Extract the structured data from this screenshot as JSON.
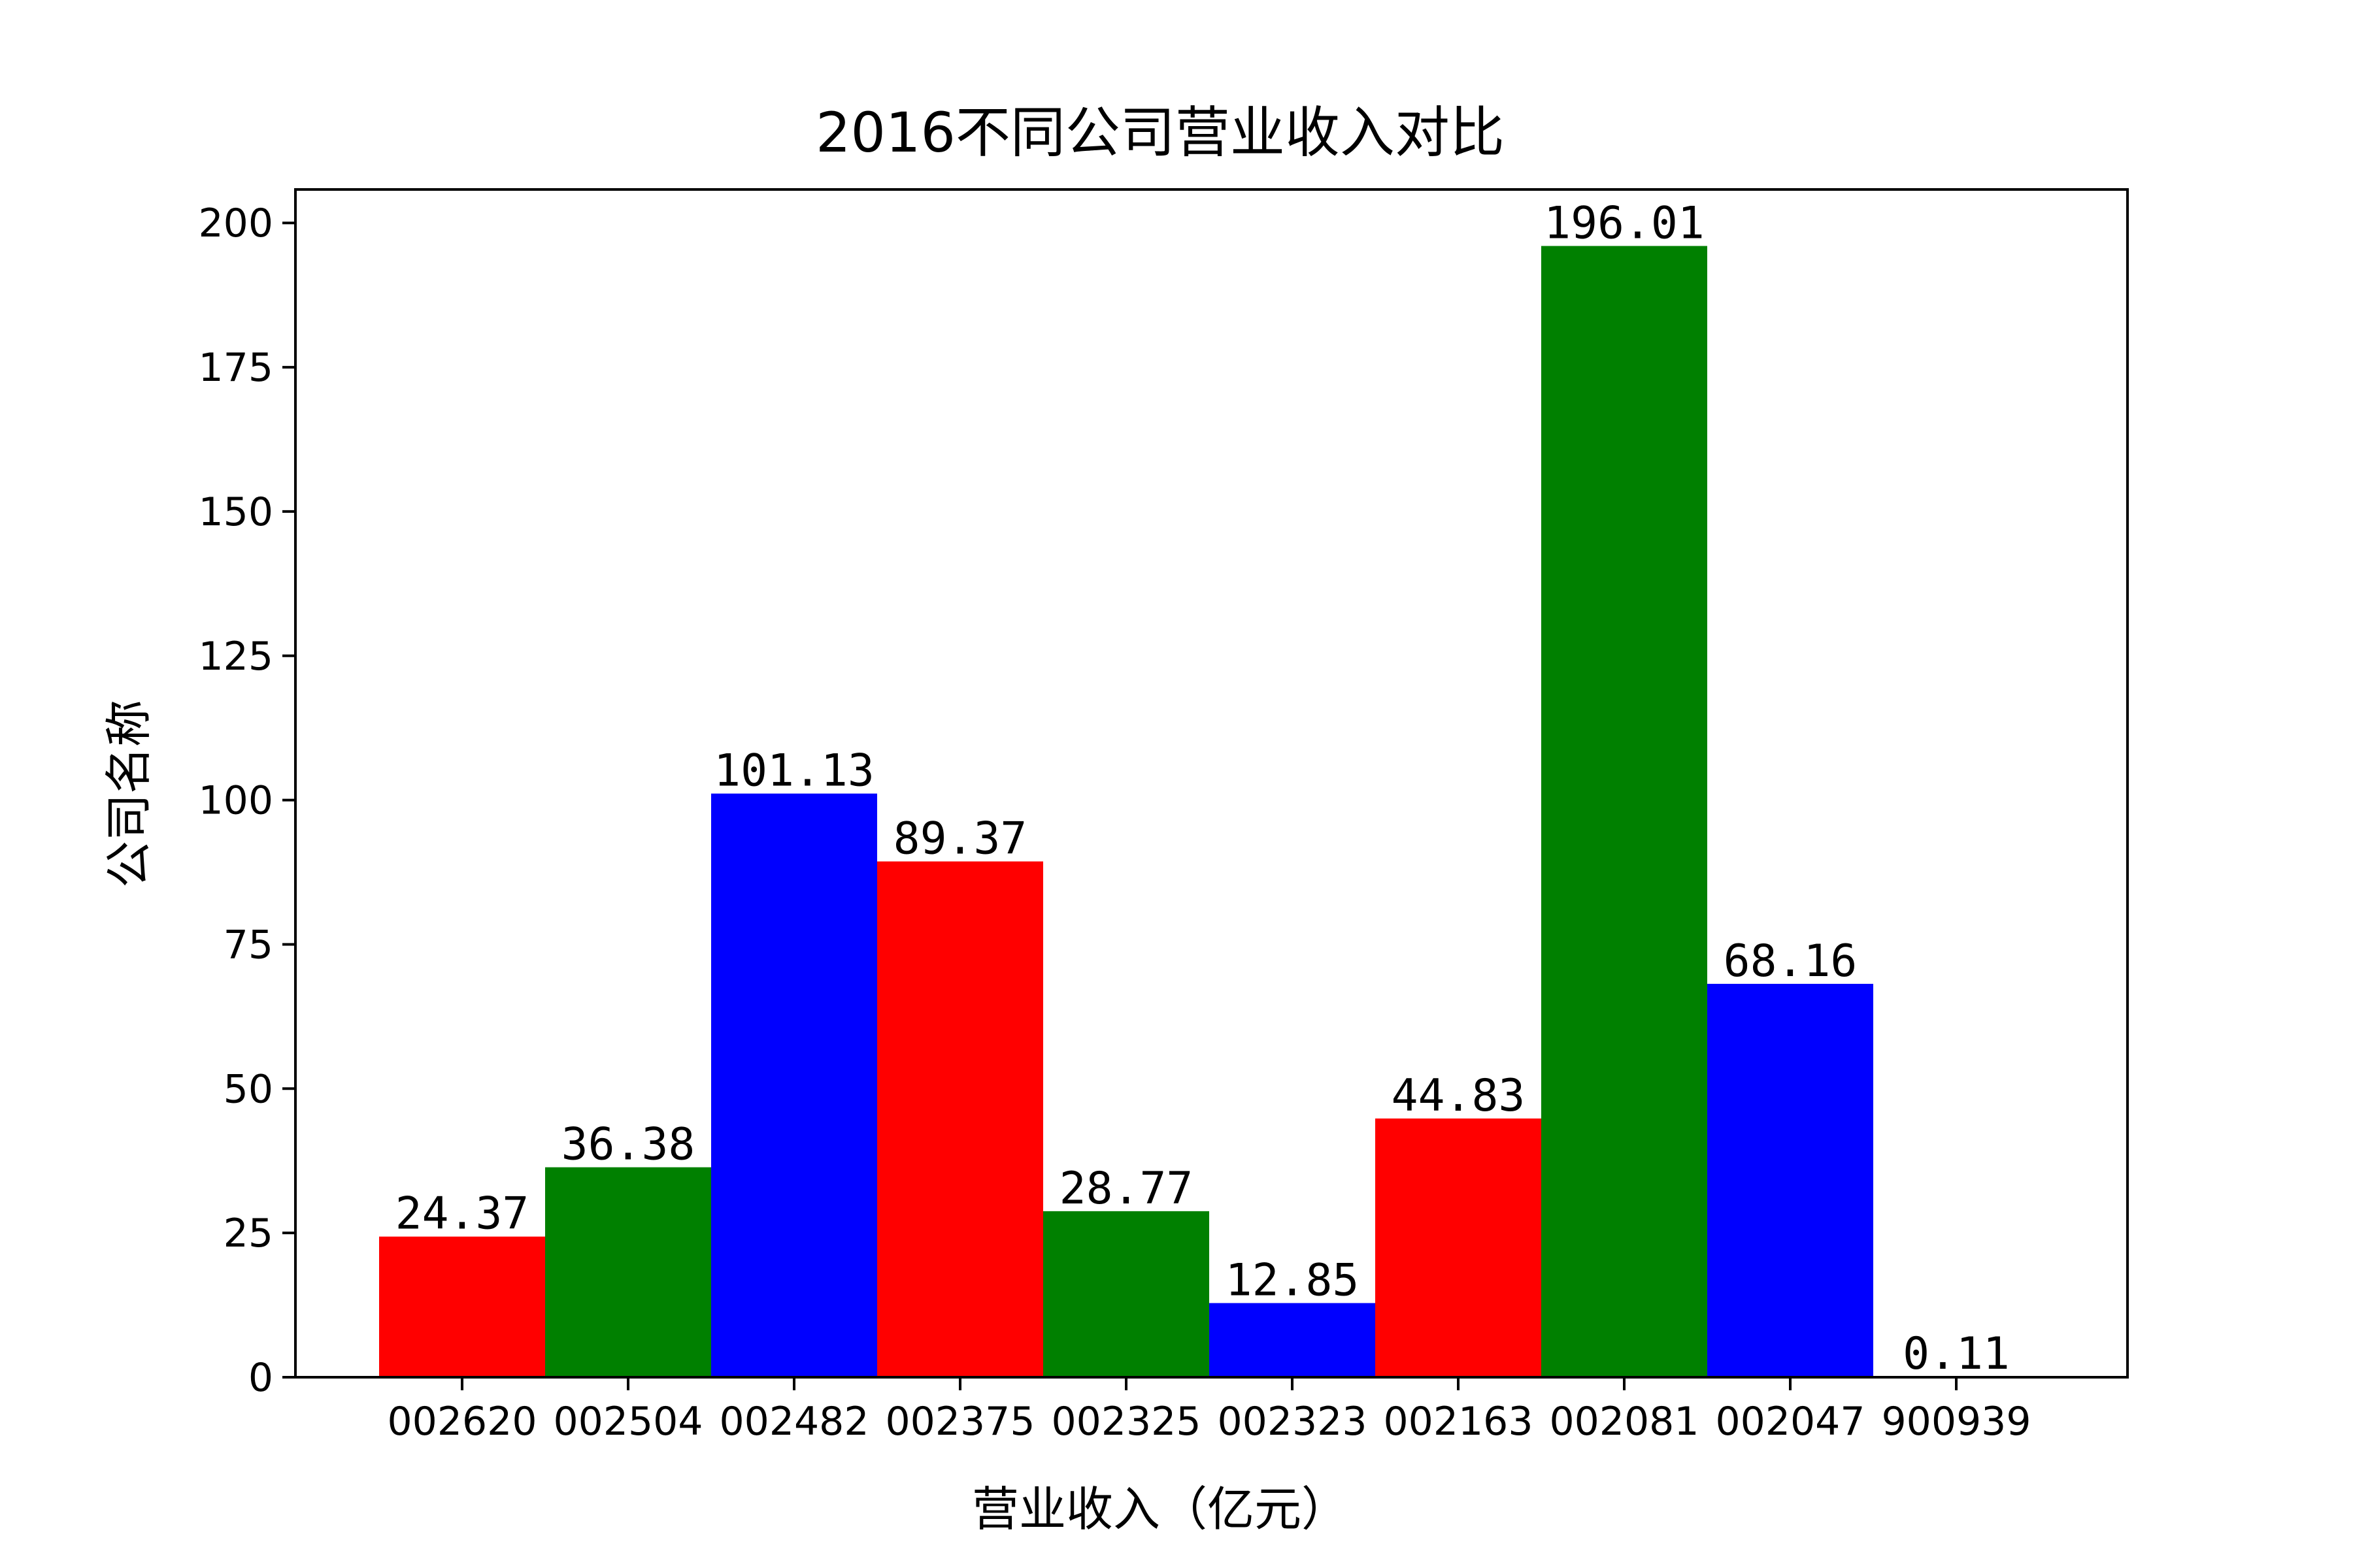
{
  "chart_data": {
    "type": "bar",
    "title": "2016不同公司营业收入对比",
    "xlabel": "营业收入（亿元）",
    "ylabel": "公司名称",
    "categories": [
      "002620",
      "002504",
      "002482",
      "002375",
      "002325",
      "002323",
      "002163",
      "002081",
      "002047",
      "900939"
    ],
    "values": [
      24.37,
      36.38,
      101.13,
      89.37,
      28.77,
      12.85,
      44.83,
      196.01,
      68.16,
      0.11
    ],
    "data_labels": [
      "24.37",
      "36.38",
      "101.13",
      "89.37",
      "28.77",
      "12.85",
      "44.83",
      "196.01",
      "68.16",
      "0.11"
    ],
    "colors": [
      "#ff0000",
      "#008000",
      "#0000ff",
      "#ff0000",
      "#008000",
      "#0000ff",
      "#ff0000",
      "#008000",
      "#0000ff",
      "#ff0000"
    ],
    "ylim": [
      0,
      205.8
    ],
    "yticks": [
      0,
      25,
      50,
      75,
      100,
      125,
      150,
      175,
      200
    ],
    "ytick_labels": [
      "0",
      "25",
      "50",
      "75",
      "100",
      "125",
      "150",
      "175",
      "200"
    ],
    "grid": false,
    "legend": "none"
  }
}
